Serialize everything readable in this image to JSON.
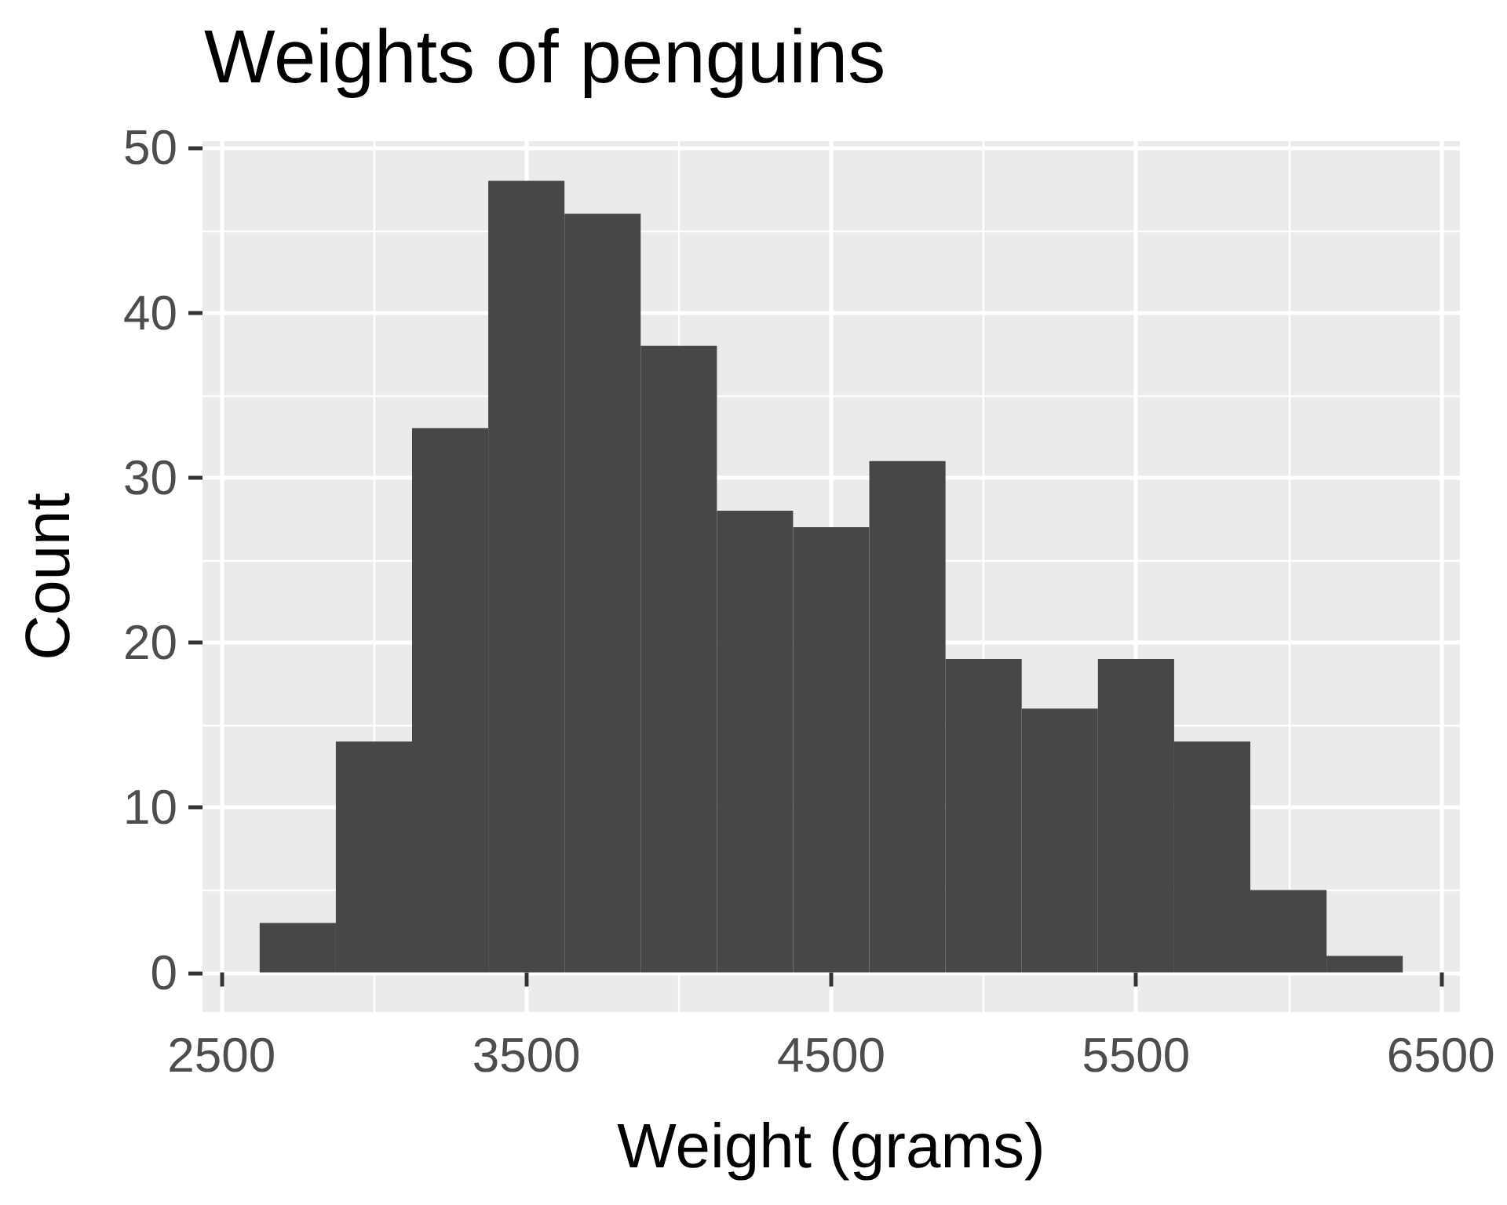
{
  "chart_data": {
    "type": "histogram",
    "title": "Weights of penguins",
    "xlabel": "Weight (grams)",
    "ylabel": "Count",
    "bins": [
      2625,
      2875,
      3125,
      3375,
      3625,
      3875,
      4125,
      4375,
      4625,
      4875,
      5125,
      5375,
      5625,
      5875,
      6125,
      6375
    ],
    "values": [
      3,
      14,
      33,
      48,
      46,
      38,
      28,
      27,
      31,
      19,
      16,
      19,
      14,
      5,
      1
    ],
    "color": "#474747",
    "xlim": [
      2437.5,
      6562.5
    ],
    "ylim": [
      -2.4,
      50.4
    ],
    "xticks": [
      2500,
      3500,
      4500,
      5500,
      6500
    ],
    "yticks": [
      0,
      10,
      20,
      30,
      40,
      50
    ],
    "grid": true
  }
}
